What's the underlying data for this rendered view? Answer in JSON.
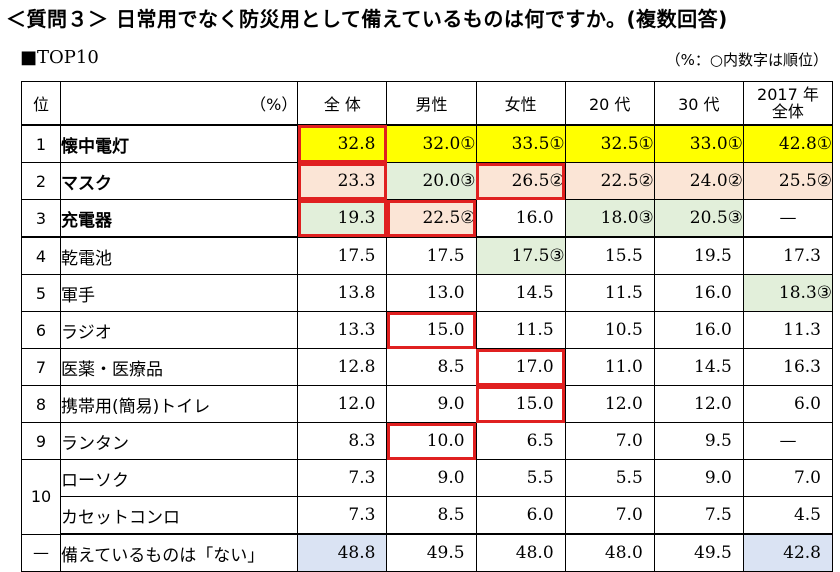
{
  "title": "＜質問３＞ 日常用でなく防災用として備えているものは何ですか。(複数回答)",
  "subtitle": "■TOP10",
  "note": "（%：○内数字は順位）",
  "headers": {
    "rank": "位",
    "unit": "（%）",
    "all": "全 体",
    "male": "男性",
    "female": "女性",
    "age20": "20 代",
    "age30": "30 代",
    "y2017_line1": "2017 年",
    "y2017_line2": "全体"
  },
  "rows": [
    {
      "rank": "1",
      "item": "懐中電灯",
      "all": "32.8",
      "male": "32.0①",
      "female": "33.5①",
      "age20": "32.5①",
      "age30": "33.0①",
      "y2017": "42.8①"
    },
    {
      "rank": "2",
      "item": "マスク",
      "all": "23.3",
      "male": "20.0③",
      "female": "26.5②",
      "age20": "22.5②",
      "age30": "24.0②",
      "y2017": "25.5②"
    },
    {
      "rank": "3",
      "item": "充電器",
      "all": "19.3",
      "male": "22.5②",
      "female": "16.0",
      "age20": "18.0③",
      "age30": "20.5③",
      "y2017": "—"
    },
    {
      "rank": "4",
      "item": "乾電池",
      "all": "17.5",
      "male": "17.5",
      "female": "17.5③",
      "age20": "15.5",
      "age30": "19.5",
      "y2017": "17.3"
    },
    {
      "rank": "5",
      "item": "軍手",
      "all": "13.8",
      "male": "13.0",
      "female": "14.5",
      "age20": "11.5",
      "age30": "16.0",
      "y2017": "18.3③"
    },
    {
      "rank": "6",
      "item": "ラジオ",
      "all": "13.3",
      "male": "15.0",
      "female": "11.5",
      "age20": "10.5",
      "age30": "16.0",
      "y2017": "11.3"
    },
    {
      "rank": "7",
      "item": "医薬・医療品",
      "all": "12.8",
      "male": "8.5",
      "female": "17.0",
      "age20": "11.0",
      "age30": "14.5",
      "y2017": "16.3"
    },
    {
      "rank": "8",
      "item": "携帯用(簡易)トイレ",
      "all": "12.0",
      "male": "9.0",
      "female": "15.0",
      "age20": "12.0",
      "age30": "12.0",
      "y2017": "6.0"
    },
    {
      "rank": "9",
      "item": "ランタン",
      "all": "8.3",
      "male": "10.0",
      "female": "6.5",
      "age20": "7.0",
      "age30": "9.5",
      "y2017": "—"
    },
    {
      "rank": "10",
      "item": "ローソク",
      "all": "7.3",
      "male": "9.0",
      "female": "5.5",
      "age20": "5.5",
      "age30": "9.0",
      "y2017": "7.0"
    },
    {
      "rank": "",
      "item": "カセットコンロ",
      "all": "7.3",
      "male": "8.5",
      "female": "6.0",
      "age20": "7.0",
      "age30": "7.5",
      "y2017": "4.5"
    },
    {
      "rank": "—",
      "item": "備えているものは「ない」",
      "all": "48.8",
      "male": "49.5",
      "female": "48.0",
      "age20": "48.0",
      "age30": "49.5",
      "y2017": "42.8"
    }
  ],
  "colors": {
    "rank1_highlight": "#ffff00",
    "rank2_highlight": "#fbe5d6",
    "rank3_highlight": "#e2efda",
    "none_highlight": "#dae3f3",
    "box_outline": "#e02020"
  }
}
